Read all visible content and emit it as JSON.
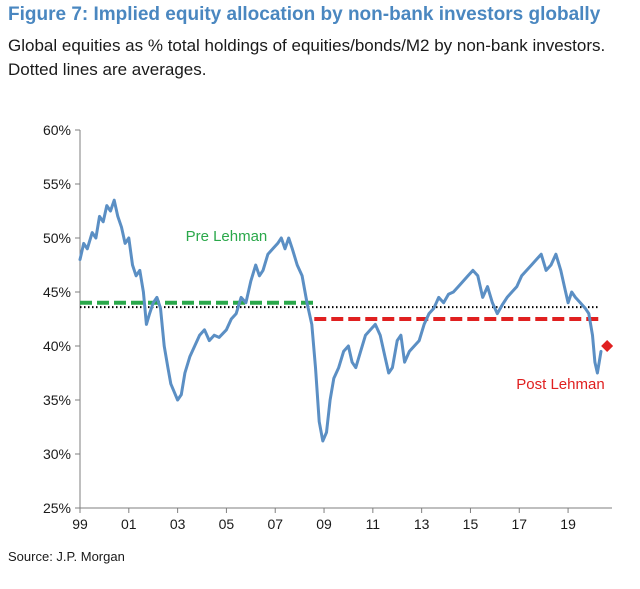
{
  "title": "Figure 7: Implied equity allocation by non-bank investors globally",
  "subtitle": "Global equities as % total holdings of equities/bonds/M2 by non-bank investors. Dotted lines are averages.",
  "source": "Source: J.P. Morgan",
  "colors": {
    "title": "#4a87c0",
    "line": "#5b8fc4",
    "pre": "#2aa84a",
    "post": "#e02020",
    "avg": "#000000"
  },
  "chart_data": {
    "type": "line",
    "title": "Figure 7: Implied equity allocation by non-bank investors globally",
    "ylabel": "Global equities as % total holdings of equities/bonds/M2",
    "xlabel": "",
    "xlim": [
      1999,
      2020.8
    ],
    "ylim": [
      25,
      60
    ],
    "x_ticks": [
      1999,
      2001,
      2003,
      2005,
      2007,
      2009,
      2011,
      2013,
      2015,
      2017,
      2019
    ],
    "x_tick_labels": [
      "99",
      "01",
      "03",
      "05",
      "07",
      "09",
      "11",
      "13",
      "15",
      "17",
      "19"
    ],
    "y_ticks": [
      25,
      30,
      35,
      40,
      45,
      50,
      55,
      60
    ],
    "y_tick_labels": [
      "25%",
      "30%",
      "35%",
      "40%",
      "45%",
      "50%",
      "55%",
      "60%"
    ],
    "series": [
      {
        "name": "Implied equity allocation",
        "points": [
          [
            1999.0,
            48.0
          ],
          [
            1999.15,
            49.5
          ],
          [
            1999.3,
            49.0
          ],
          [
            1999.5,
            50.5
          ],
          [
            1999.65,
            50.0
          ],
          [
            1999.8,
            52.0
          ],
          [
            1999.95,
            51.5
          ],
          [
            2000.1,
            53.0
          ],
          [
            2000.25,
            52.5
          ],
          [
            2000.4,
            53.5
          ],
          [
            2000.55,
            52.0
          ],
          [
            2000.7,
            51.0
          ],
          [
            2000.85,
            49.5
          ],
          [
            2001.0,
            50.0
          ],
          [
            2001.15,
            47.5
          ],
          [
            2001.3,
            46.5
          ],
          [
            2001.45,
            47.0
          ],
          [
            2001.6,
            45.0
          ],
          [
            2001.72,
            42.0
          ],
          [
            2001.85,
            43.0
          ],
          [
            2002.0,
            44.0
          ],
          [
            2002.15,
            44.5
          ],
          [
            2002.3,
            43.5
          ],
          [
            2002.45,
            40.0
          ],
          [
            2002.6,
            38.0
          ],
          [
            2002.72,
            36.5
          ],
          [
            2002.85,
            35.8
          ],
          [
            2003.0,
            35.0
          ],
          [
            2003.15,
            35.5
          ],
          [
            2003.3,
            37.5
          ],
          [
            2003.5,
            39.0
          ],
          [
            2003.7,
            40.0
          ],
          [
            2003.9,
            41.0
          ],
          [
            2004.1,
            41.5
          ],
          [
            2004.3,
            40.5
          ],
          [
            2004.5,
            41.0
          ],
          [
            2004.7,
            40.8
          ],
          [
            2005.0,
            41.5
          ],
          [
            2005.2,
            42.5
          ],
          [
            2005.4,
            43.0
          ],
          [
            2005.6,
            44.5
          ],
          [
            2005.8,
            44.0
          ],
          [
            2006.0,
            46.0
          ],
          [
            2006.2,
            47.5
          ],
          [
            2006.35,
            46.5
          ],
          [
            2006.5,
            47.0
          ],
          [
            2006.7,
            48.5
          ],
          [
            2006.9,
            49.0
          ],
          [
            2007.1,
            49.5
          ],
          [
            2007.25,
            50.0
          ],
          [
            2007.4,
            49.0
          ],
          [
            2007.55,
            50.0
          ],
          [
            2007.7,
            49.0
          ],
          [
            2007.9,
            47.5
          ],
          [
            2008.1,
            46.5
          ],
          [
            2008.3,
            44.0
          ],
          [
            2008.5,
            42.0
          ],
          [
            2008.65,
            38.0
          ],
          [
            2008.8,
            33.0
          ],
          [
            2008.95,
            31.2
          ],
          [
            2009.1,
            32.0
          ],
          [
            2009.25,
            35.0
          ],
          [
            2009.4,
            37.0
          ],
          [
            2009.6,
            38.0
          ],
          [
            2009.8,
            39.5
          ],
          [
            2010.0,
            40.0
          ],
          [
            2010.15,
            38.5
          ],
          [
            2010.3,
            38.0
          ],
          [
            2010.5,
            39.5
          ],
          [
            2010.7,
            41.0
          ],
          [
            2010.9,
            41.5
          ],
          [
            2011.1,
            42.0
          ],
          [
            2011.3,
            41.0
          ],
          [
            2011.5,
            39.0
          ],
          [
            2011.65,
            37.5
          ],
          [
            2011.8,
            38.0
          ],
          [
            2012.0,
            40.5
          ],
          [
            2012.15,
            41.0
          ],
          [
            2012.3,
            38.5
          ],
          [
            2012.5,
            39.5
          ],
          [
            2012.7,
            40.0
          ],
          [
            2012.9,
            40.5
          ],
          [
            2013.1,
            42.0
          ],
          [
            2013.3,
            43.0
          ],
          [
            2013.5,
            43.5
          ],
          [
            2013.7,
            44.5
          ],
          [
            2013.9,
            44.0
          ],
          [
            2014.1,
            44.8
          ],
          [
            2014.3,
            45.0
          ],
          [
            2014.5,
            45.5
          ],
          [
            2014.7,
            46.0
          ],
          [
            2014.9,
            46.5
          ],
          [
            2015.1,
            47.0
          ],
          [
            2015.3,
            46.5
          ],
          [
            2015.5,
            44.5
          ],
          [
            2015.7,
            45.5
          ],
          [
            2015.9,
            44.0
          ],
          [
            2016.1,
            43.0
          ],
          [
            2016.3,
            43.8
          ],
          [
            2016.5,
            44.5
          ],
          [
            2016.7,
            45.0
          ],
          [
            2016.9,
            45.5
          ],
          [
            2017.1,
            46.5
          ],
          [
            2017.3,
            47.0
          ],
          [
            2017.5,
            47.5
          ],
          [
            2017.7,
            48.0
          ],
          [
            2017.9,
            48.5
          ],
          [
            2018.1,
            47.0
          ],
          [
            2018.3,
            47.5
          ],
          [
            2018.5,
            48.5
          ],
          [
            2018.7,
            47.0
          ],
          [
            2018.85,
            45.5
          ],
          [
            2019.0,
            44.0
          ],
          [
            2019.15,
            45.0
          ],
          [
            2019.3,
            44.5
          ],
          [
            2019.5,
            44.0
          ],
          [
            2019.7,
            43.5
          ],
          [
            2019.85,
            43.0
          ],
          [
            2020.0,
            41.0
          ],
          [
            2020.1,
            38.5
          ],
          [
            2020.2,
            37.5
          ],
          [
            2020.35,
            39.5
          ]
        ]
      }
    ],
    "averages": [
      {
        "name": "Pre Lehman",
        "value": 44.0,
        "x_start": 1999.0,
        "x_end": 2008.6,
        "style": "dashed"
      },
      {
        "name": "Post Lehman",
        "value": 42.5,
        "x_start": 2008.6,
        "x_end": 2020.3,
        "style": "dashed"
      },
      {
        "name": "Overall average",
        "value": 43.6,
        "x_start": 1999.0,
        "x_end": 2020.3,
        "style": "dotted"
      }
    ],
    "latest_point": {
      "x": 2020.6,
      "y": 40.0
    },
    "annotations": [
      {
        "text": "Pre Lehman",
        "x": 2005.0,
        "y": 49.7
      },
      {
        "text": "Post Lehman",
        "x": 2020.5,
        "y": 36.0
      }
    ]
  }
}
